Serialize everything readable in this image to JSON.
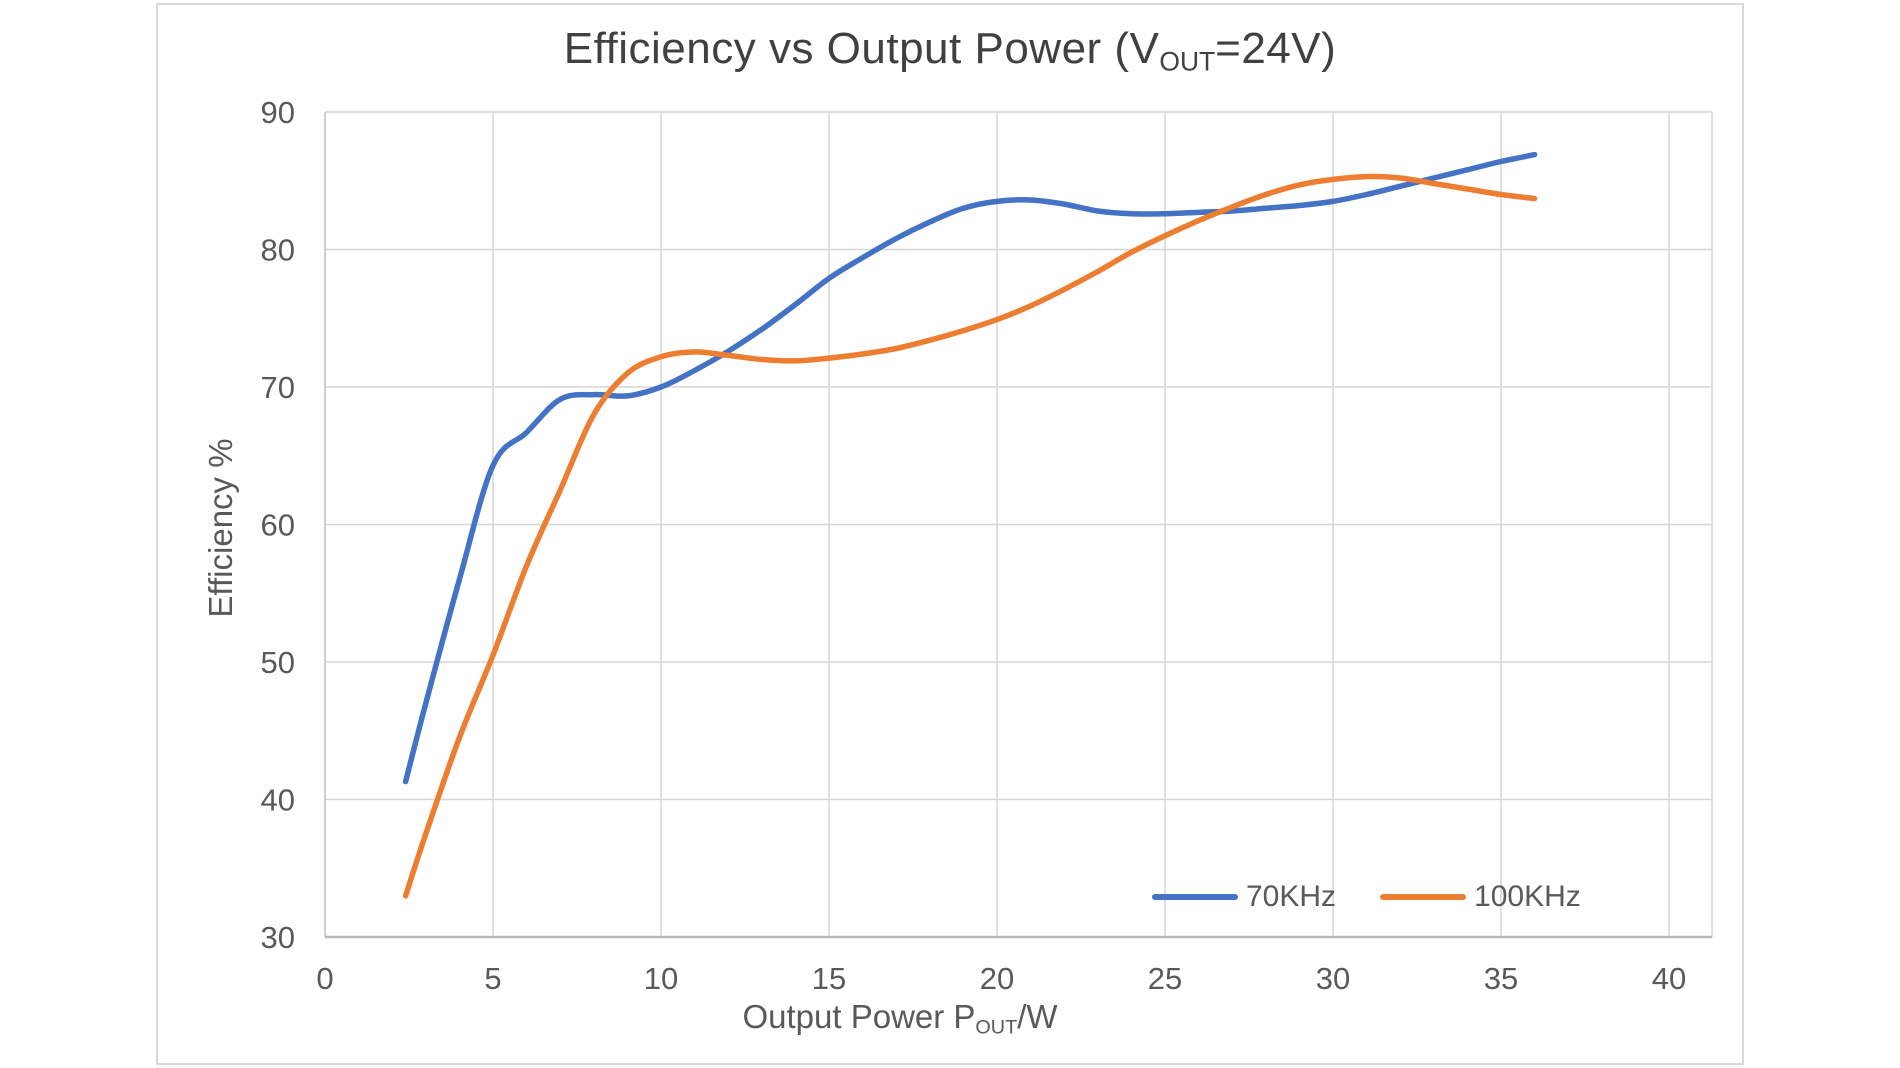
{
  "chart_data": {
    "type": "line",
    "smooth": true,
    "title": {
      "text": "Efficiency vs Output Power (VOUT=24V)",
      "prefix": "Efficiency vs Output Power (V",
      "subscript": "OUT",
      "suffix": "=24V)"
    },
    "x_axis": {
      "label_text": "Output Power POUT/W",
      "label_prefix": "Output Power P",
      "label_subscript": "OUT",
      "label_suffix": "/W",
      "min": 0,
      "max": 40,
      "tick_step": 5,
      "ticks": [
        0,
        5,
        10,
        15,
        20,
        25,
        30,
        35,
        40
      ]
    },
    "y_axis": {
      "label": "Efficiency %",
      "min": 30,
      "max": 90,
      "tick_step": 10,
      "ticks": [
        30,
        40,
        50,
        60,
        70,
        80,
        90
      ]
    },
    "grid": {
      "shown": true,
      "color": "#D6D6D6",
      "axis_color": "#B8B8B8"
    },
    "legend_position": "inside-bottom-right",
    "series": [
      {
        "name": "70KHz",
        "color": "#4472C4",
        "points": [
          [
            2.4,
            41.3
          ],
          [
            3,
            47
          ],
          [
            4,
            56
          ],
          [
            5,
            64.3
          ],
          [
            6,
            66.7
          ],
          [
            7,
            69.1
          ],
          [
            8,
            69.45
          ],
          [
            9,
            69.35
          ],
          [
            10,
            70
          ],
          [
            11,
            71.2
          ],
          [
            12,
            72.6
          ],
          [
            13,
            74.2
          ],
          [
            14,
            76
          ],
          [
            15,
            77.9
          ],
          [
            16,
            79.4
          ],
          [
            17,
            80.8
          ],
          [
            18,
            82
          ],
          [
            19,
            83
          ],
          [
            20,
            83.5
          ],
          [
            21,
            83.6
          ],
          [
            22,
            83.3
          ],
          [
            23,
            82.8
          ],
          [
            24,
            82.6
          ],
          [
            25,
            82.6
          ],
          [
            26,
            82.7
          ],
          [
            27,
            82.8
          ],
          [
            28,
            83
          ],
          [
            29,
            83.2
          ],
          [
            30,
            83.5
          ],
          [
            31,
            84
          ],
          [
            32,
            84.6
          ],
          [
            33,
            85.2
          ],
          [
            34,
            85.8
          ],
          [
            35,
            86.4
          ],
          [
            36,
            86.9
          ]
        ]
      },
      {
        "name": "100KHz",
        "color": "#ED7D31",
        "points": [
          [
            2.4,
            33
          ],
          [
            3,
            37.5
          ],
          [
            4,
            44.5
          ],
          [
            5,
            50.5
          ],
          [
            6,
            57
          ],
          [
            7,
            62.5
          ],
          [
            8,
            68
          ],
          [
            9,
            71
          ],
          [
            10,
            72.2
          ],
          [
            11,
            72.55
          ],
          [
            12,
            72.3
          ],
          [
            13,
            72
          ],
          [
            14,
            71.9
          ],
          [
            15,
            72.1
          ],
          [
            16,
            72.4
          ],
          [
            17,
            72.8
          ],
          [
            18,
            73.4
          ],
          [
            19,
            74.1
          ],
          [
            20,
            74.9
          ],
          [
            21,
            75.9
          ],
          [
            22,
            77.1
          ],
          [
            23,
            78.4
          ],
          [
            24,
            79.8
          ],
          [
            25,
            81
          ],
          [
            26,
            82.1
          ],
          [
            27,
            83.1
          ],
          [
            28,
            84
          ],
          [
            29,
            84.7
          ],
          [
            30,
            85.1
          ],
          [
            31,
            85.3
          ],
          [
            32,
            85.2
          ],
          [
            33,
            84.8
          ],
          [
            34,
            84.4
          ],
          [
            35,
            84
          ],
          [
            36,
            83.7
          ]
        ]
      }
    ]
  }
}
